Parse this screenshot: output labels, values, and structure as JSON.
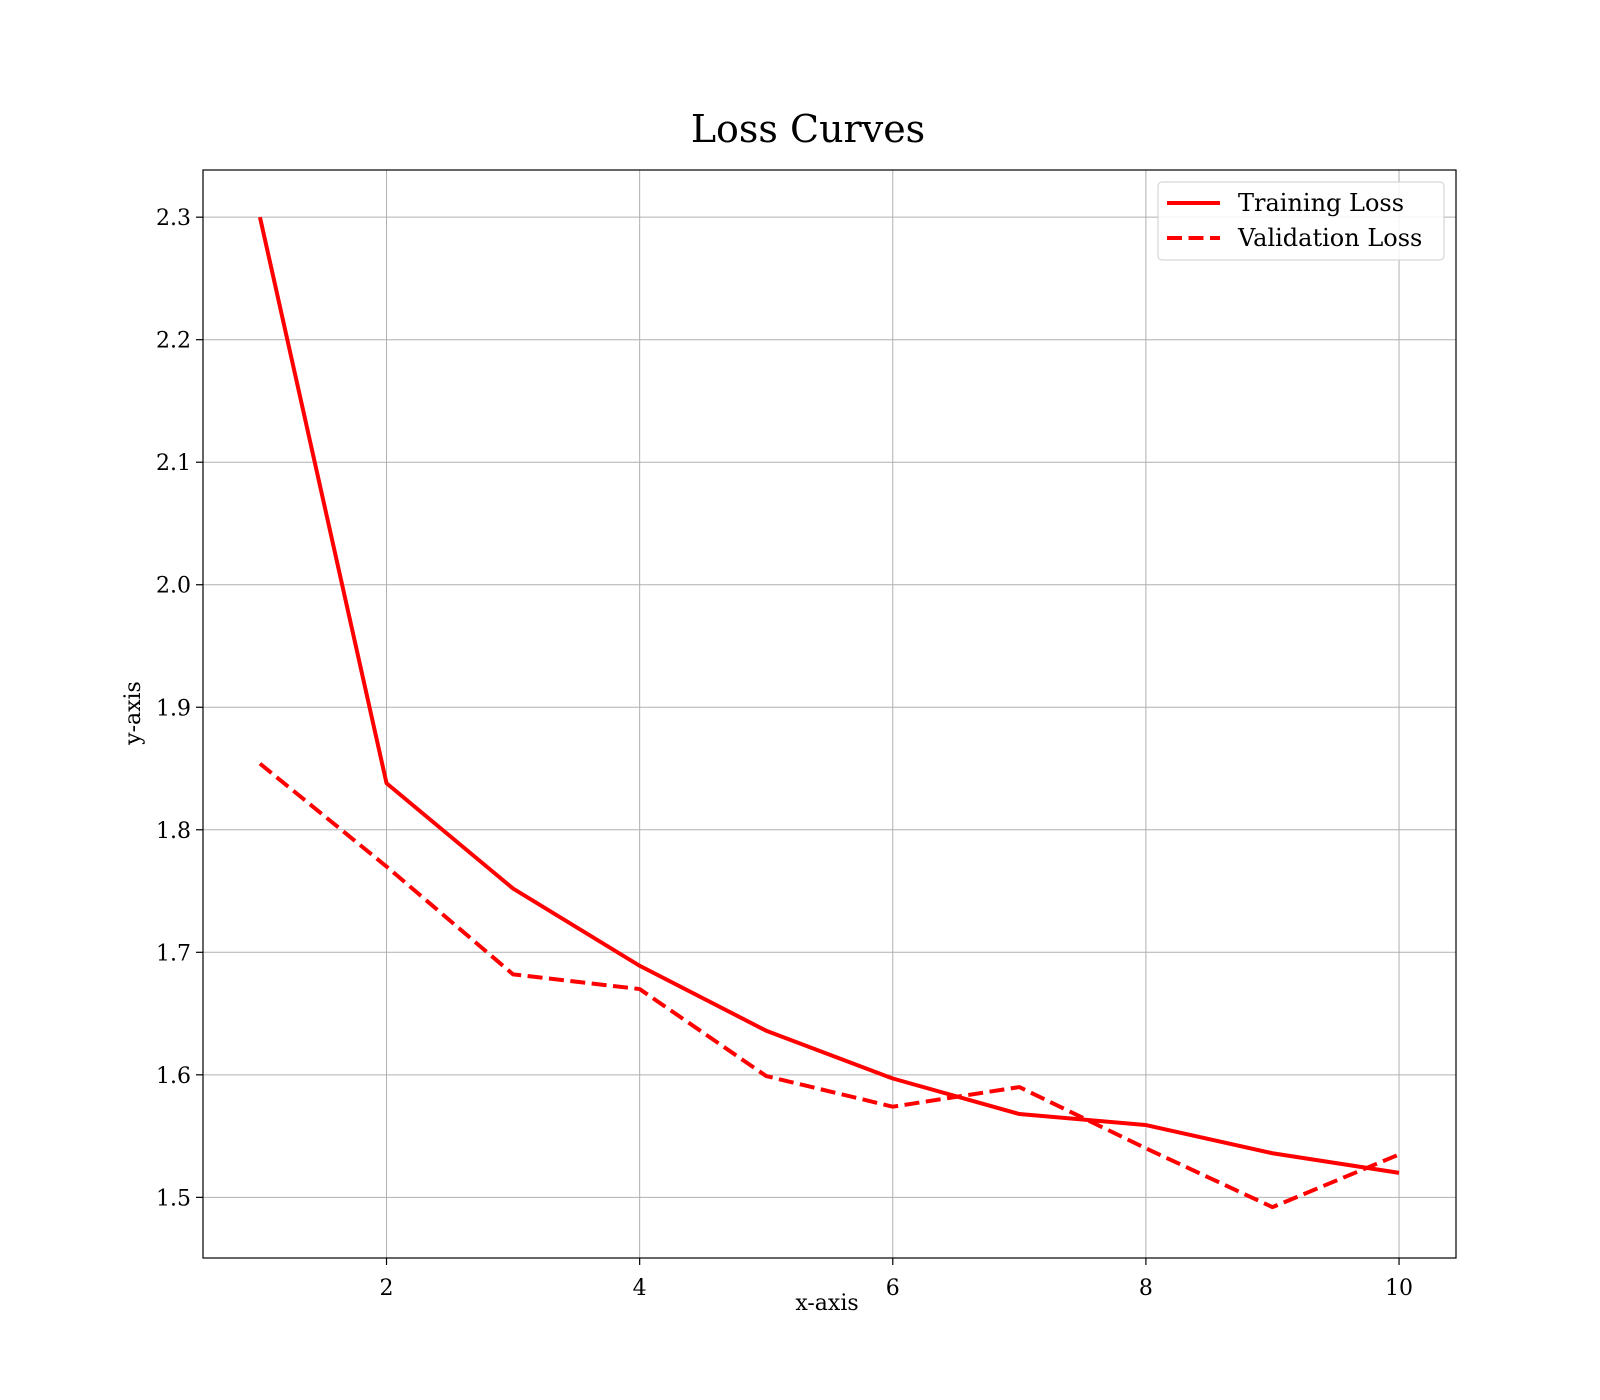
{
  "chart_data": {
    "type": "line",
    "title": "Loss Curves",
    "xlabel": "x-axis",
    "ylabel": "y-axis",
    "x": [
      1,
      2,
      3,
      4,
      5,
      6,
      7,
      8,
      9,
      10
    ],
    "series": [
      {
        "name": "Training Loss",
        "values": [
          2.3,
          1.838,
          1.752,
          1.689,
          1.636,
          1.597,
          1.568,
          1.559,
          1.536,
          1.52
        ],
        "color": "#ff0000",
        "style": "solid"
      },
      {
        "name": "Validation Loss",
        "values": [
          1.854,
          1.77,
          1.682,
          1.67,
          1.599,
          1.574,
          1.59,
          1.54,
          1.492,
          1.535
        ],
        "color": "#ff0000",
        "style": "dashed"
      }
    ],
    "xlim": [
      0.55,
      10.45
    ],
    "ylim": [
      1.4505,
      2.3385
    ],
    "xticks": [
      "2",
      "4",
      "6",
      "8",
      "10"
    ],
    "yticks": [
      "1.5",
      "1.6",
      "1.7",
      "1.8",
      "1.9",
      "2.0",
      "2.1",
      "2.2",
      "2.3"
    ],
    "grid": true,
    "legend_position": "top-right"
  }
}
